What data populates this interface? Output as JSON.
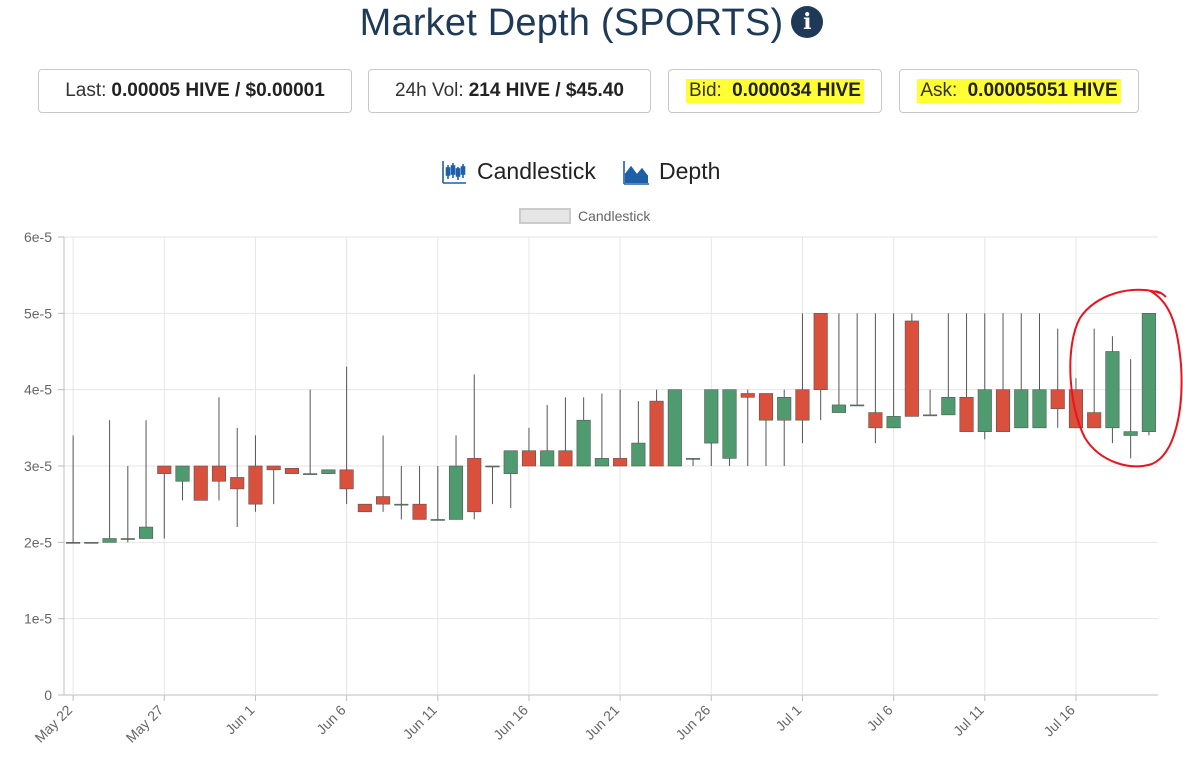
{
  "header": {
    "title": "Market Depth (SPORTS)",
    "info_icon": "info-icon"
  },
  "stats": {
    "last_label": "Last:",
    "last_value": "0.00005 HIVE / $0.00001",
    "vol_label": "24h Vol:",
    "vol_value": "214 HIVE / $45.40",
    "bid_label": "Bid:",
    "bid_value": "0.000034 HIVE",
    "ask_label": "Ask:",
    "ask_value": "0.00005051 HIVE",
    "highlight_color": "#ffff33"
  },
  "view_toggle": {
    "candlestick_label": "Candlestick",
    "depth_label": "Depth",
    "candlestick_icon": "candlestick-icon",
    "depth_icon": "area-chart-icon",
    "icon_color": "#1f5fa8"
  },
  "chart_data": {
    "type": "candlestick",
    "legend": "Candlestick",
    "legend_position": "top-center",
    "grid": true,
    "ylim": [
      0,
      6e-05
    ],
    "y_ticks": [
      "0",
      "1e-5",
      "2e-5",
      "3e-5",
      "4e-5",
      "5e-5",
      "6e-5"
    ],
    "x_start": "May 22",
    "x_ticks": [
      "May 22",
      "May 27",
      "Jun 1",
      "Jun 6",
      "Jun 11",
      "Jun 16",
      "Jun 21",
      "Jun 26",
      "Jul 1",
      "Jul 6",
      "Jul 11",
      "Jul 16"
    ],
    "up_color": "#4f9a6e",
    "down_color": "#d9503c",
    "annotation": {
      "type": "hand-drawn circle",
      "color": "#e8141e",
      "around": [
        "Jul 16",
        "Jul 17",
        "Jul 18",
        "Jul 19",
        "Jul 20"
      ]
    },
    "candles": [
      {
        "date": "May 22",
        "open": 2e-05,
        "high": 3.4e-05,
        "low": 2e-05,
        "close": 2e-05
      },
      {
        "date": "May 23",
        "open": 2e-05,
        "high": 2e-05,
        "low": 2e-05,
        "close": 2e-05
      },
      {
        "date": "May 24",
        "open": 2e-05,
        "high": 3.6e-05,
        "low": 2e-05,
        "close": 2.05e-05
      },
      {
        "date": "May 25",
        "open": 2.05e-05,
        "high": 3e-05,
        "low": 2e-05,
        "close": 2.05e-05
      },
      {
        "date": "May 26",
        "open": 2.05e-05,
        "high": 3.6e-05,
        "low": 2.05e-05,
        "close": 2.2e-05
      },
      {
        "date": "May 27",
        "open": 3e-05,
        "high": 3e-05,
        "low": 2.05e-05,
        "close": 2.9e-05
      },
      {
        "date": "May 28",
        "open": 2.8e-05,
        "high": 3e-05,
        "low": 2.55e-05,
        "close": 3e-05
      },
      {
        "date": "May 29",
        "open": 3e-05,
        "high": 3e-05,
        "low": 2.55e-05,
        "close": 2.55e-05
      },
      {
        "date": "May 30",
        "open": 3e-05,
        "high": 3.9e-05,
        "low": 2.55e-05,
        "close": 2.8e-05
      },
      {
        "date": "May 31",
        "open": 2.85e-05,
        "high": 3.5e-05,
        "low": 2.2e-05,
        "close": 2.7e-05
      },
      {
        "date": "Jun 1",
        "open": 3e-05,
        "high": 3.4e-05,
        "low": 2.4e-05,
        "close": 2.5e-05
      },
      {
        "date": "Jun 2",
        "open": 3e-05,
        "high": 3e-05,
        "low": 2.5e-05,
        "close": 2.95e-05
      },
      {
        "date": "Jun 3",
        "open": 2.97e-05,
        "high": 2.97e-05,
        "low": 2.9e-05,
        "close": 2.9e-05
      },
      {
        "date": "Jun 4",
        "open": 2.9e-05,
        "high": 4e-05,
        "low": 2.9e-05,
        "close": 2.9e-05
      },
      {
        "date": "Jun 5",
        "open": 2.9e-05,
        "high": 2.95e-05,
        "low": 2.9e-05,
        "close": 2.95e-05
      },
      {
        "date": "Jun 6",
        "open": 2.95e-05,
        "high": 4.3e-05,
        "low": 2.5e-05,
        "close": 2.7e-05
      },
      {
        "date": "Jun 7",
        "open": 2.5e-05,
        "high": 2.5e-05,
        "low": 2.4e-05,
        "close": 2.4e-05
      },
      {
        "date": "Jun 8",
        "open": 2.6e-05,
        "high": 3.4e-05,
        "low": 2.4e-05,
        "close": 2.5e-05
      },
      {
        "date": "Jun 9",
        "open": 2.5e-05,
        "high": 3e-05,
        "low": 2.3e-05,
        "close": 2.5e-05
      },
      {
        "date": "Jun 10",
        "open": 2.5e-05,
        "high": 3e-05,
        "low": 2.3e-05,
        "close": 2.3e-05
      },
      {
        "date": "Jun 11",
        "open": 2.3e-05,
        "high": 3e-05,
        "low": 2.3e-05,
        "close": 2.3e-05
      },
      {
        "date": "Jun 12",
        "open": 2.3e-05,
        "high": 3.4e-05,
        "low": 2.3e-05,
        "close": 3e-05
      },
      {
        "date": "Jun 13",
        "open": 3.1e-05,
        "high": 4.2e-05,
        "low": 2.3e-05,
        "close": 2.4e-05
      },
      {
        "date": "Jun 14",
        "open": 3e-05,
        "high": 3e-05,
        "low": 2.5e-05,
        "close": 3e-05
      },
      {
        "date": "Jun 15",
        "open": 2.9e-05,
        "high": 3.2e-05,
        "low": 2.45e-05,
        "close": 3.2e-05
      },
      {
        "date": "Jun 16",
        "open": 3.2e-05,
        "high": 3.5e-05,
        "low": 3e-05,
        "close": 3e-05
      },
      {
        "date": "Jun 17",
        "open": 3e-05,
        "high": 3.8e-05,
        "low": 3e-05,
        "close": 3.2e-05
      },
      {
        "date": "Jun 18",
        "open": 3.2e-05,
        "high": 3.9e-05,
        "low": 3e-05,
        "close": 3e-05
      },
      {
        "date": "Jun 19",
        "open": 3e-05,
        "high": 3.9e-05,
        "low": 3e-05,
        "close": 3.6e-05
      },
      {
        "date": "Jun 20",
        "open": 3e-05,
        "high": 3.95e-05,
        "low": 3e-05,
        "close": 3.1e-05
      },
      {
        "date": "Jun 21",
        "open": 3.1e-05,
        "high": 4e-05,
        "low": 3e-05,
        "close": 3e-05
      },
      {
        "date": "Jun 22",
        "open": 3e-05,
        "high": 3.85e-05,
        "low": 3e-05,
        "close": 3.3e-05
      },
      {
        "date": "Jun 23",
        "open": 3.85e-05,
        "high": 4e-05,
        "low": 3e-05,
        "close": 3e-05
      },
      {
        "date": "Jun 24",
        "open": 3e-05,
        "high": 4e-05,
        "low": 3e-05,
        "close": 4e-05
      },
      {
        "date": "Jun 25",
        "open": 3.1e-05,
        "high": 3.1e-05,
        "low": 3e-05,
        "close": 3.1e-05
      },
      {
        "date": "Jun 26",
        "open": 3.3e-05,
        "high": 4e-05,
        "low": 3e-05,
        "close": 4e-05
      },
      {
        "date": "Jun 27",
        "open": 3.1e-05,
        "high": 4e-05,
        "low": 3e-05,
        "close": 4e-05
      },
      {
        "date": "Jun 28",
        "open": 3.95e-05,
        "high": 4e-05,
        "low": 3e-05,
        "close": 3.9e-05
      },
      {
        "date": "Jun 29",
        "open": 3.95e-05,
        "high": 3.95e-05,
        "low": 3e-05,
        "close": 3.6e-05
      },
      {
        "date": "Jun 30",
        "open": 3.6e-05,
        "high": 4e-05,
        "low": 3e-05,
        "close": 3.9e-05
      },
      {
        "date": "Jul 1",
        "open": 4e-05,
        "high": 5e-05,
        "low": 3.3e-05,
        "close": 3.6e-05
      },
      {
        "date": "Jul 2",
        "open": 5e-05,
        "high": 5e-05,
        "low": 3.6e-05,
        "close": 4e-05
      },
      {
        "date": "Jul 3",
        "open": 3.7e-05,
        "high": 5e-05,
        "low": 3.7e-05,
        "close": 3.8e-05
      },
      {
        "date": "Jul 4",
        "open": 3.8e-05,
        "high": 5e-05,
        "low": 3.8e-05,
        "close": 3.8e-05
      },
      {
        "date": "Jul 5",
        "open": 3.7e-05,
        "high": 5e-05,
        "low": 3.3e-05,
        "close": 3.5e-05
      },
      {
        "date": "Jul 6",
        "open": 3.5e-05,
        "high": 5e-05,
        "low": 3.5e-05,
        "close": 3.65e-05
      },
      {
        "date": "Jul 7",
        "open": 4.9e-05,
        "high": 5e-05,
        "low": 3.65e-05,
        "close": 3.65e-05
      },
      {
        "date": "Jul 8",
        "open": 3.67e-05,
        "high": 4e-05,
        "low": 3.67e-05,
        "close": 3.67e-05
      },
      {
        "date": "Jul 9",
        "open": 3.67e-05,
        "high": 5e-05,
        "low": 3.67e-05,
        "close": 3.9e-05
      },
      {
        "date": "Jul 10",
        "open": 3.9e-05,
        "high": 5e-05,
        "low": 3.45e-05,
        "close": 3.45e-05
      },
      {
        "date": "Jul 11",
        "open": 3.45e-05,
        "high": 5e-05,
        "low": 3.35e-05,
        "close": 4e-05
      },
      {
        "date": "Jul 12",
        "open": 4e-05,
        "high": 5e-05,
        "low": 3.45e-05,
        "close": 3.45e-05
      },
      {
        "date": "Jul 13",
        "open": 3.5e-05,
        "high": 5e-05,
        "low": 3.5e-05,
        "close": 4e-05
      },
      {
        "date": "Jul 14",
        "open": 3.5e-05,
        "high": 5e-05,
        "low": 3.5e-05,
        "close": 4e-05
      },
      {
        "date": "Jul 15",
        "open": 4e-05,
        "high": 4.8e-05,
        "low": 3.5e-05,
        "close": 3.75e-05
      },
      {
        "date": "Jul 16",
        "open": 4e-05,
        "high": 4.15e-05,
        "low": 3.5e-05,
        "close": 3.5e-05
      },
      {
        "date": "Jul 17",
        "open": 3.7e-05,
        "high": 4.8e-05,
        "low": 3.5e-05,
        "close": 3.5e-05
      },
      {
        "date": "Jul 18",
        "open": 3.5e-05,
        "high": 4.7e-05,
        "low": 3.3e-05,
        "close": 4.5e-05
      },
      {
        "date": "Jul 19",
        "open": 3.4e-05,
        "high": 4.4e-05,
        "low": 3.1e-05,
        "close": 3.45e-05
      },
      {
        "date": "Jul 20",
        "open": 3.45e-05,
        "high": 5e-05,
        "low": 3.4e-05,
        "close": 5e-05
      }
    ]
  }
}
